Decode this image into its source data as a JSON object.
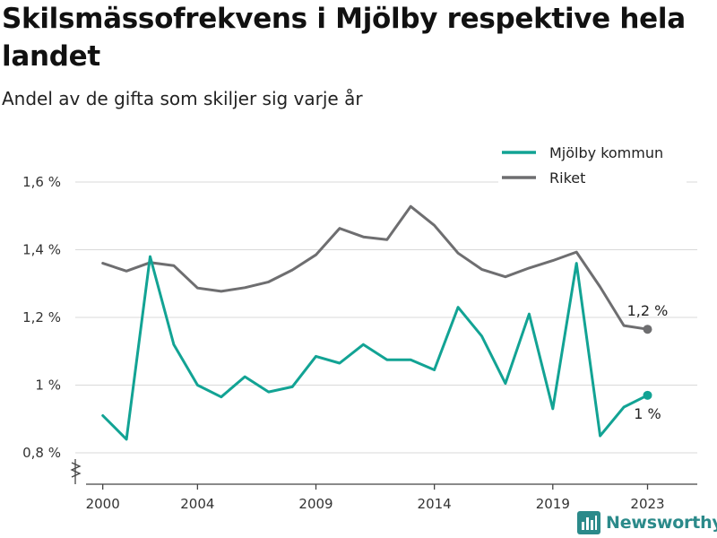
{
  "title": "Skilsmässofrekvens i Mjölby respektive hela landet",
  "subtitle": "Andel av de gifta som skiljer sig varje år",
  "brand": "Newsworthy",
  "colors": {
    "mjolby": "#12a394",
    "riket": "#6e6e70",
    "grid": "#d9d9d9",
    "axis": "#444444",
    "brand": "#2b8a8a"
  },
  "chart_data": {
    "type": "line",
    "x": [
      2000,
      2001,
      2002,
      2003,
      2004,
      2005,
      2006,
      2007,
      2008,
      2009,
      2010,
      2011,
      2012,
      2013,
      2014,
      2015,
      2016,
      2017,
      2018,
      2019,
      2020,
      2021,
      2022,
      2023
    ],
    "series": [
      {
        "name": "Mjölby kommun",
        "values": [
          0.91,
          0.84,
          1.38,
          1.12,
          1.0,
          0.965,
          1.025,
          0.98,
          0.995,
          1.085,
          1.065,
          1.12,
          1.075,
          1.075,
          1.045,
          1.23,
          1.145,
          1.005,
          1.21,
          0.93,
          1.36,
          0.85,
          0.935,
          0.97
        ],
        "end_label": "1 %"
      },
      {
        "name": "Riket",
        "values": [
          1.36,
          1.337,
          1.362,
          1.353,
          1.287,
          1.277,
          1.288,
          1.305,
          1.34,
          1.385,
          1.463,
          1.438,
          1.43,
          1.528,
          1.472,
          1.39,
          1.342,
          1.32,
          1.346,
          1.368,
          1.393,
          1.29,
          1.176,
          1.165
        ],
        "end_label": "1,2 %"
      }
    ],
    "ylim": [
      0.8,
      1.6
    ],
    "yticks": [
      0.8,
      1.0,
      1.2,
      1.4,
      1.6
    ],
    "ytick_labels": [
      "0,8 %",
      "1 %",
      "1,2 %",
      "1,4 %",
      "1,6 %"
    ],
    "xticks": [
      2000,
      2004,
      2009,
      2014,
      2019,
      2023
    ],
    "xtick_labels": [
      "2000",
      "2004",
      "2009",
      "2014",
      "2019",
      "2023"
    ],
    "grid": true,
    "legend_position": "top-right",
    "axis_break": true
  }
}
